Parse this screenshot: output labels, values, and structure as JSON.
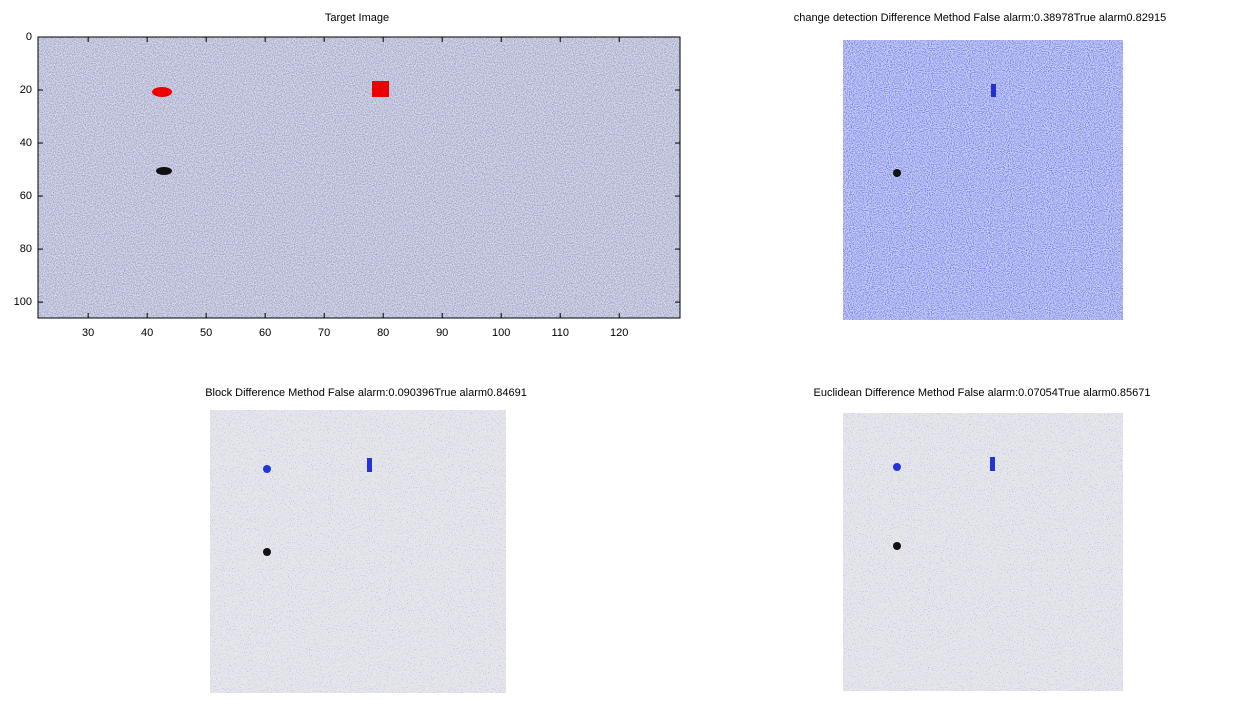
{
  "panels": [
    {
      "title": "Target Image",
      "xlim": [
        21.5,
        130.3
      ],
      "ylim": [
        0,
        106
      ],
      "y_reversed": true,
      "xticks": [
        30,
        40,
        50,
        60,
        70,
        80,
        90,
        100,
        110,
        120
      ],
      "yticks": [
        0,
        20,
        40,
        60,
        80,
        100
      ]
    },
    {
      "title": "change detection Difference Method False alarm:0.38978True alarm0.82915"
    },
    {
      "title": "Block Difference Method False alarm:0.090396True alarm0.84691"
    },
    {
      "title": "Euclidean Difference Method False alarm:0.07054True alarm0.85671"
    }
  ]
}
